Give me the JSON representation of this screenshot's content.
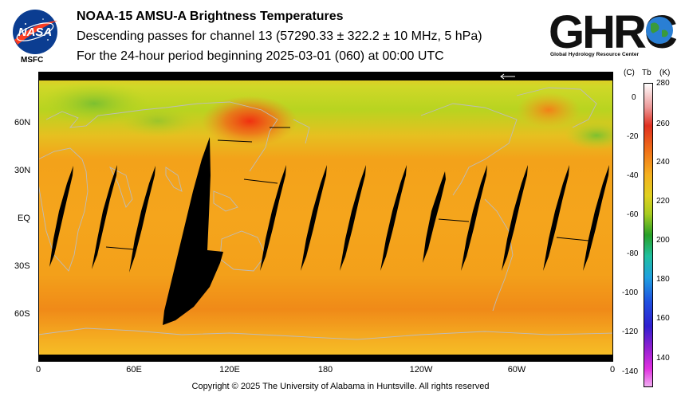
{
  "header": {
    "title": "NOAA-15 AMSU-A Brightness Temperatures",
    "subtitle": "Descending passes for channel 13 (57290.33 ± 322.2 ± 10 MHz, 5 hPa)",
    "period": "For the 24-hour period beginning 2025-03-01 (060) at 00:00 UTC"
  },
  "logos": {
    "nasa_text": "NASA",
    "nasa_label": "MSFC",
    "ghrc_text": "GHRC",
    "ghrc_subtitle": "Global Hydrology Resource Center"
  },
  "map": {
    "lat_labels": [
      "60N",
      "30N",
      "EQ",
      "30S",
      "60S"
    ],
    "lon_labels": [
      "0",
      "60E",
      "120E",
      "180",
      "120W",
      "60W",
      "0"
    ],
    "no_data_color": "#000000",
    "coastline_color": "#b8b8b8"
  },
  "colorbar": {
    "header_c": "(C)",
    "header_tb": "Tb",
    "header_k": "(K)",
    "kelvin_ticks": [
      "280",
      "260",
      "240",
      "220",
      "200",
      "180",
      "160",
      "140"
    ],
    "celsius_ticks": [
      "0",
      "-20",
      "-40",
      "-60",
      "-80",
      "-100",
      "-120",
      "-140"
    ],
    "range_k": [
      130,
      280
    ]
  },
  "footer": {
    "copyright": "Copyright © 2025 The University of Alabama in Huntsville.  All rights reserved"
  }
}
